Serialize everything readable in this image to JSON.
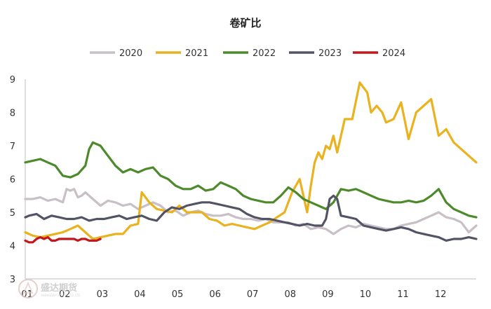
{
  "chart_data": {
    "type": "line",
    "title": "卷矿比",
    "xlabel": "",
    "ylabel": "",
    "x_ticks": [
      "01",
      "02",
      "03",
      "04",
      "05",
      "06",
      "07",
      "08",
      "09",
      "10",
      "11",
      "12"
    ],
    "y_ticks": [
      3,
      4,
      5,
      6,
      7,
      8,
      9
    ],
    "xlim": [
      0,
      12
    ],
    "ylim": [
      3,
      9
    ],
    "grid": false,
    "legend_position": "top",
    "series": [
      {
        "name": "2020",
        "color": "#c9bfc6",
        "x": [
          0,
          0.2,
          0.4,
          0.6,
          0.8,
          1.0,
          1.1,
          1.2,
          1.3,
          1.4,
          1.5,
          1.6,
          1.8,
          2.0,
          2.2,
          2.4,
          2.6,
          2.8,
          3.0,
          3.2,
          3.4,
          3.6,
          3.8,
          4.0,
          4.2,
          4.4,
          4.6,
          4.8,
          5.0,
          5.2,
          5.4,
          5.6,
          5.8,
          6.0,
          6.2,
          6.4,
          6.6,
          6.8,
          7.0,
          7.2,
          7.4,
          7.6,
          7.8,
          8.0,
          8.2,
          8.4,
          8.6,
          8.8,
          9.0,
          9.2,
          9.4,
          9.6,
          9.8,
          10.0,
          10.2,
          10.4,
          10.6,
          10.8,
          11.0,
          11.2,
          11.4,
          11.6,
          11.8,
          12.0
        ],
        "values": [
          5.4,
          5.4,
          5.45,
          5.35,
          5.4,
          5.3,
          5.7,
          5.65,
          5.7,
          5.45,
          5.5,
          5.6,
          5.4,
          5.2,
          5.35,
          5.3,
          5.2,
          5.25,
          5.1,
          5.2,
          5.3,
          5.2,
          5.0,
          5.05,
          4.9,
          5.0,
          5.05,
          4.95,
          4.9,
          4.9,
          4.95,
          4.85,
          4.8,
          4.8,
          4.75,
          4.8,
          4.7,
          4.7,
          4.7,
          4.6,
          4.65,
          4.5,
          4.55,
          4.5,
          4.35,
          4.5,
          4.6,
          4.55,
          4.65,
          4.6,
          4.55,
          4.5,
          4.5,
          4.6,
          4.65,
          4.7,
          4.8,
          4.9,
          5.0,
          4.85,
          4.8,
          4.7,
          4.4,
          4.6
        ]
      },
      {
        "name": "2021",
        "color": "#e9b21e",
        "x": [
          0,
          0.2,
          0.4,
          0.6,
          0.8,
          1.0,
          1.2,
          1.4,
          1.6,
          1.8,
          2.0,
          2.2,
          2.4,
          2.6,
          2.8,
          3.0,
          3.1,
          3.3,
          3.5,
          3.7,
          3.9,
          4.1,
          4.3,
          4.5,
          4.7,
          4.9,
          5.1,
          5.3,
          5.5,
          5.7,
          5.9,
          6.1,
          6.3,
          6.5,
          6.7,
          6.9,
          7.1,
          7.3,
          7.5,
          7.6,
          7.7,
          7.8,
          7.9,
          8.0,
          8.1,
          8.2,
          8.3,
          8.5,
          8.7,
          8.9,
          9.1,
          9.2,
          9.35,
          9.5,
          9.6,
          9.8,
          10.0,
          10.2,
          10.4,
          10.6,
          10.8,
          11.0,
          11.2,
          11.4,
          11.6,
          11.8,
          12.0
        ],
        "values": [
          4.4,
          4.3,
          4.25,
          4.3,
          4.35,
          4.4,
          4.5,
          4.6,
          4.4,
          4.2,
          4.25,
          4.3,
          4.35,
          4.35,
          4.6,
          4.65,
          5.6,
          5.3,
          5.1,
          5.05,
          5.0,
          5.2,
          5.0,
          5.0,
          5.0,
          4.8,
          4.75,
          4.6,
          4.65,
          4.6,
          4.55,
          4.5,
          4.6,
          4.7,
          4.85,
          5.0,
          5.6,
          6.0,
          5.0,
          5.8,
          6.5,
          6.8,
          6.6,
          7.0,
          6.9,
          7.3,
          6.8,
          7.8,
          7.8,
          8.9,
          8.6,
          8.0,
          8.2,
          8.0,
          7.7,
          7.8,
          8.3,
          7.2,
          8.0,
          8.2,
          8.4,
          7.3,
          7.5,
          7.1,
          6.9,
          6.7,
          6.5
        ]
      },
      {
        "name": "2022",
        "color": "#4d8a2b",
        "x": [
          0,
          0.2,
          0.4,
          0.6,
          0.8,
          1.0,
          1.2,
          1.4,
          1.6,
          1.7,
          1.8,
          2.0,
          2.2,
          2.4,
          2.6,
          2.8,
          3.0,
          3.2,
          3.4,
          3.6,
          3.8,
          4.0,
          4.2,
          4.4,
          4.6,
          4.8,
          5.0,
          5.2,
          5.4,
          5.6,
          5.8,
          6.0,
          6.2,
          6.4,
          6.6,
          6.8,
          7.0,
          7.2,
          7.4,
          7.6,
          7.8,
          8.0,
          8.2,
          8.4,
          8.6,
          8.8,
          9.0,
          9.2,
          9.4,
          9.6,
          9.8,
          10.0,
          10.2,
          10.4,
          10.6,
          10.8,
          11.0,
          11.2,
          11.4,
          11.6,
          11.8,
          12.0
        ],
        "values": [
          6.5,
          6.55,
          6.6,
          6.5,
          6.4,
          6.1,
          6.05,
          6.15,
          6.4,
          6.9,
          7.1,
          7.0,
          6.7,
          6.4,
          6.2,
          6.3,
          6.2,
          6.3,
          6.35,
          6.1,
          6.0,
          5.8,
          5.7,
          5.7,
          5.8,
          5.65,
          5.7,
          5.9,
          5.8,
          5.7,
          5.5,
          5.4,
          5.35,
          5.3,
          5.3,
          5.5,
          5.75,
          5.6,
          5.4,
          5.3,
          5.2,
          5.1,
          5.3,
          5.7,
          5.65,
          5.7,
          5.6,
          5.5,
          5.4,
          5.35,
          5.3,
          5.3,
          5.35,
          5.3,
          5.35,
          5.5,
          5.7,
          5.3,
          5.1,
          5.0,
          4.9,
          4.85
        ]
      },
      {
        "name": "2023",
        "color": "#525465",
        "x": [
          0,
          0.1,
          0.3,
          0.5,
          0.7,
          0.9,
          1.1,
          1.3,
          1.5,
          1.7,
          1.9,
          2.1,
          2.3,
          2.5,
          2.7,
          2.9,
          3.1,
          3.3,
          3.5,
          3.7,
          3.9,
          4.1,
          4.3,
          4.5,
          4.7,
          4.9,
          5.1,
          5.3,
          5.5,
          5.7,
          5.9,
          6.1,
          6.3,
          6.5,
          6.7,
          6.9,
          7.1,
          7.3,
          7.5,
          7.7,
          7.9,
          8.0,
          8.1,
          8.2,
          8.3,
          8.4,
          8.6,
          8.8,
          9.0,
          9.2,
          9.4,
          9.6,
          9.8,
          10.0,
          10.2,
          10.4,
          10.6,
          10.8,
          11.0,
          11.2,
          11.4,
          11.6,
          11.8,
          12.0
        ],
        "values": [
          4.85,
          4.9,
          4.95,
          4.8,
          4.9,
          4.85,
          4.8,
          4.8,
          4.85,
          4.75,
          4.8,
          4.8,
          4.85,
          4.9,
          4.8,
          4.85,
          4.9,
          4.8,
          4.75,
          5.0,
          5.15,
          5.1,
          5.2,
          5.25,
          5.3,
          5.3,
          5.25,
          5.2,
          5.15,
          5.1,
          4.95,
          4.85,
          4.8,
          4.8,
          4.75,
          4.7,
          4.65,
          4.6,
          4.65,
          4.6,
          4.6,
          4.8,
          5.4,
          5.5,
          5.4,
          4.9,
          4.85,
          4.8,
          4.6,
          4.55,
          4.5,
          4.45,
          4.5,
          4.55,
          4.5,
          4.4,
          4.35,
          4.3,
          4.25,
          4.15,
          4.2,
          4.2,
          4.25,
          4.2
        ]
      },
      {
        "name": "2024",
        "color": "#c4161c",
        "x": [
          0,
          0.1,
          0.2,
          0.3,
          0.4,
          0.5,
          0.6,
          0.7,
          0.8,
          0.9,
          1.0,
          1.1,
          1.2,
          1.3,
          1.4,
          1.5,
          1.6,
          1.7,
          1.8,
          1.9,
          2.0
        ],
        "values": [
          4.15,
          4.1,
          4.1,
          4.2,
          4.25,
          4.2,
          4.25,
          4.15,
          4.15,
          4.2,
          4.2,
          4.2,
          4.2,
          4.2,
          4.15,
          4.2,
          4.2,
          4.15,
          4.15,
          4.15,
          4.2
        ]
      }
    ]
  },
  "watermark": {
    "name": "盛达期货",
    "sub": "SHENGDA FUTURES CO.,LTD"
  }
}
